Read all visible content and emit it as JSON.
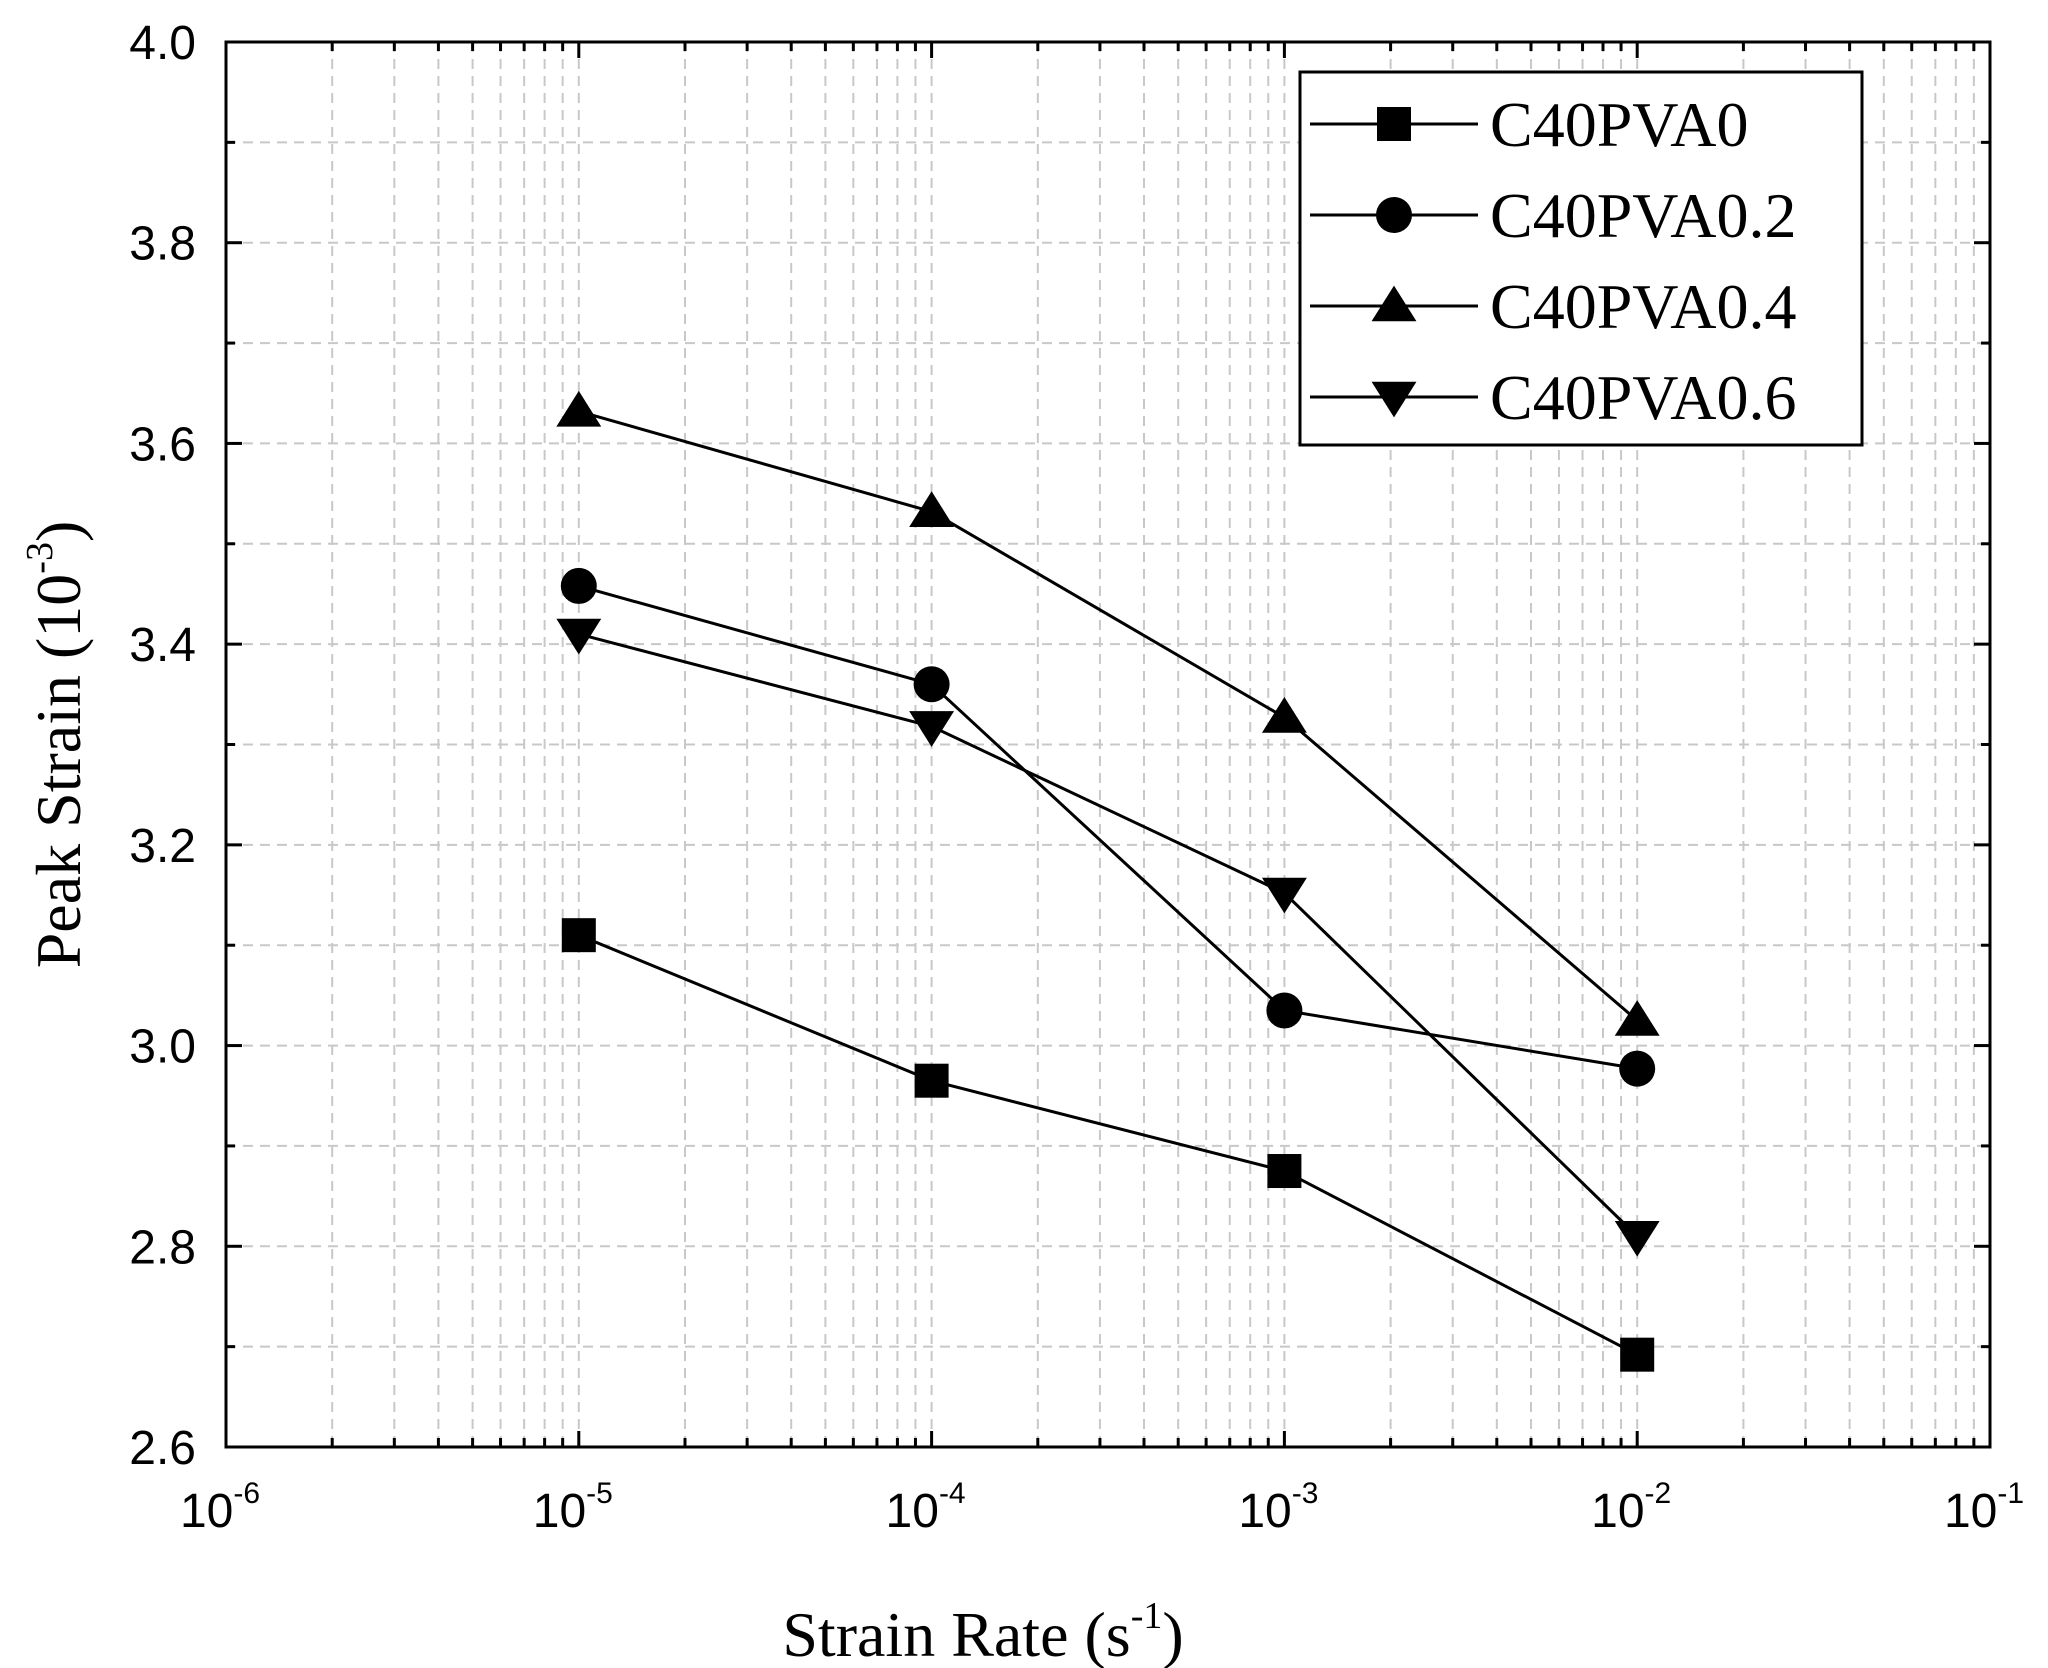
{
  "chart_data": {
    "type": "line",
    "title": "",
    "xscale": "log",
    "xlabel": {
      "text": "Strain Rate (s",
      "sup": "-1",
      "end": ")"
    },
    "ylabel": {
      "text": "Peak Strain (10",
      "sup": "-3",
      "end": ")"
    },
    "xlim": [
      1e-06,
      0.1
    ],
    "ylim": [
      2.6,
      4.0
    ],
    "grid": true,
    "legend_position": "top-right",
    "x": [
      1e-05,
      0.0001,
      0.001,
      0.01
    ],
    "x_ticks": [
      {
        "base": "10",
        "exp": "-6",
        "value": 1e-06
      },
      {
        "base": "10",
        "exp": "-5",
        "value": 1e-05
      },
      {
        "base": "10",
        "exp": "-4",
        "value": 0.0001
      },
      {
        "base": "10",
        "exp": "-3",
        "value": 0.001
      },
      {
        "base": "10",
        "exp": "-2",
        "value": 0.01
      },
      {
        "base": "10",
        "exp": "-1",
        "value": 0.1
      }
    ],
    "y_ticks": [
      "2.6",
      "2.8",
      "3.0",
      "3.2",
      "3.4",
      "3.6",
      "3.8",
      "4.0"
    ],
    "series": [
      {
        "name": "C40PVA0",
        "marker": "square",
        "values": [
          3.11,
          2.965,
          2.875,
          2.692
        ]
      },
      {
        "name": "C40PVA0.2",
        "marker": "circle",
        "values": [
          3.458,
          3.36,
          3.035,
          2.977
        ]
      },
      {
        "name": "C40PVA0.4",
        "marker": "triangle-up",
        "values": [
          3.632,
          3.532,
          3.327,
          3.025
        ]
      },
      {
        "name": "C40PVA0.6",
        "marker": "triangle-down",
        "values": [
          3.41,
          3.318,
          3.152,
          2.81
        ]
      }
    ]
  },
  "colors": {
    "line": "#000000",
    "grid": "#c8c8c8",
    "background": "#ffffff"
  }
}
